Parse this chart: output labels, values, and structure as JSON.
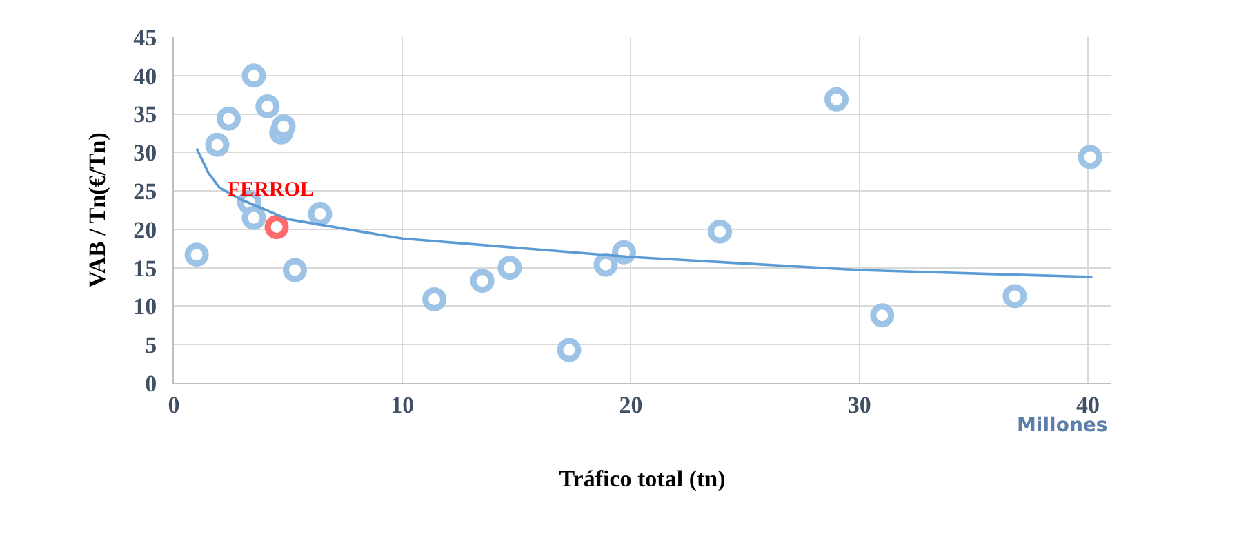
{
  "chart_data": {
    "type": "scatter",
    "xlabel": "Tráfico total (tn)",
    "ylabel": "VAB / Tn(€/Tn)",
    "xlim": [
      0,
      41
    ],
    "ylim": [
      0,
      45
    ],
    "xticks": [
      0,
      10,
      20,
      30,
      40
    ],
    "yticks": [
      0,
      5,
      10,
      15,
      20,
      25,
      30,
      35,
      40,
      45
    ],
    "grid": true,
    "marker": "circle",
    "series": [
      {
        "color": "#9dc3e6",
        "x": [
          1.0,
          1.9,
          2.4,
          3.5,
          4.1,
          4.7,
          4.8,
          3.3,
          3.5,
          5.3,
          6.4,
          11.4,
          13.5,
          14.7,
          18.9,
          19.7,
          17.3,
          23.9,
          29.0,
          31.0,
          36.8,
          40.1
        ],
        "values": [
          16.7,
          31.0,
          34.4,
          40.0,
          36.0,
          32.6,
          33.4,
          23.5,
          21.5,
          14.7,
          22.0,
          10.9,
          13.3,
          15.0,
          15.4,
          17.0,
          4.3,
          19.7,
          36.9,
          8.8,
          11.3,
          29.4
        ]
      },
      {
        "color": "#ff6b6b",
        "x": [
          4.5
        ],
        "values": [
          20.3
        ]
      },
      {
        "type": "line",
        "color": "#5b9bd5",
        "marker": "none",
        "x": [
          1.0,
          1.5,
          2,
          3,
          5,
          10,
          20,
          30,
          40.2
        ],
        "values": [
          30.5,
          27.4,
          25.4,
          23.8,
          21.3,
          18.8,
          16.4,
          14.7,
          13.8
        ]
      }
    ],
    "annotations": [
      {
        "text": "FERROL",
        "x": 4.5,
        "y": 20.3
      },
      "Millones"
    ]
  }
}
